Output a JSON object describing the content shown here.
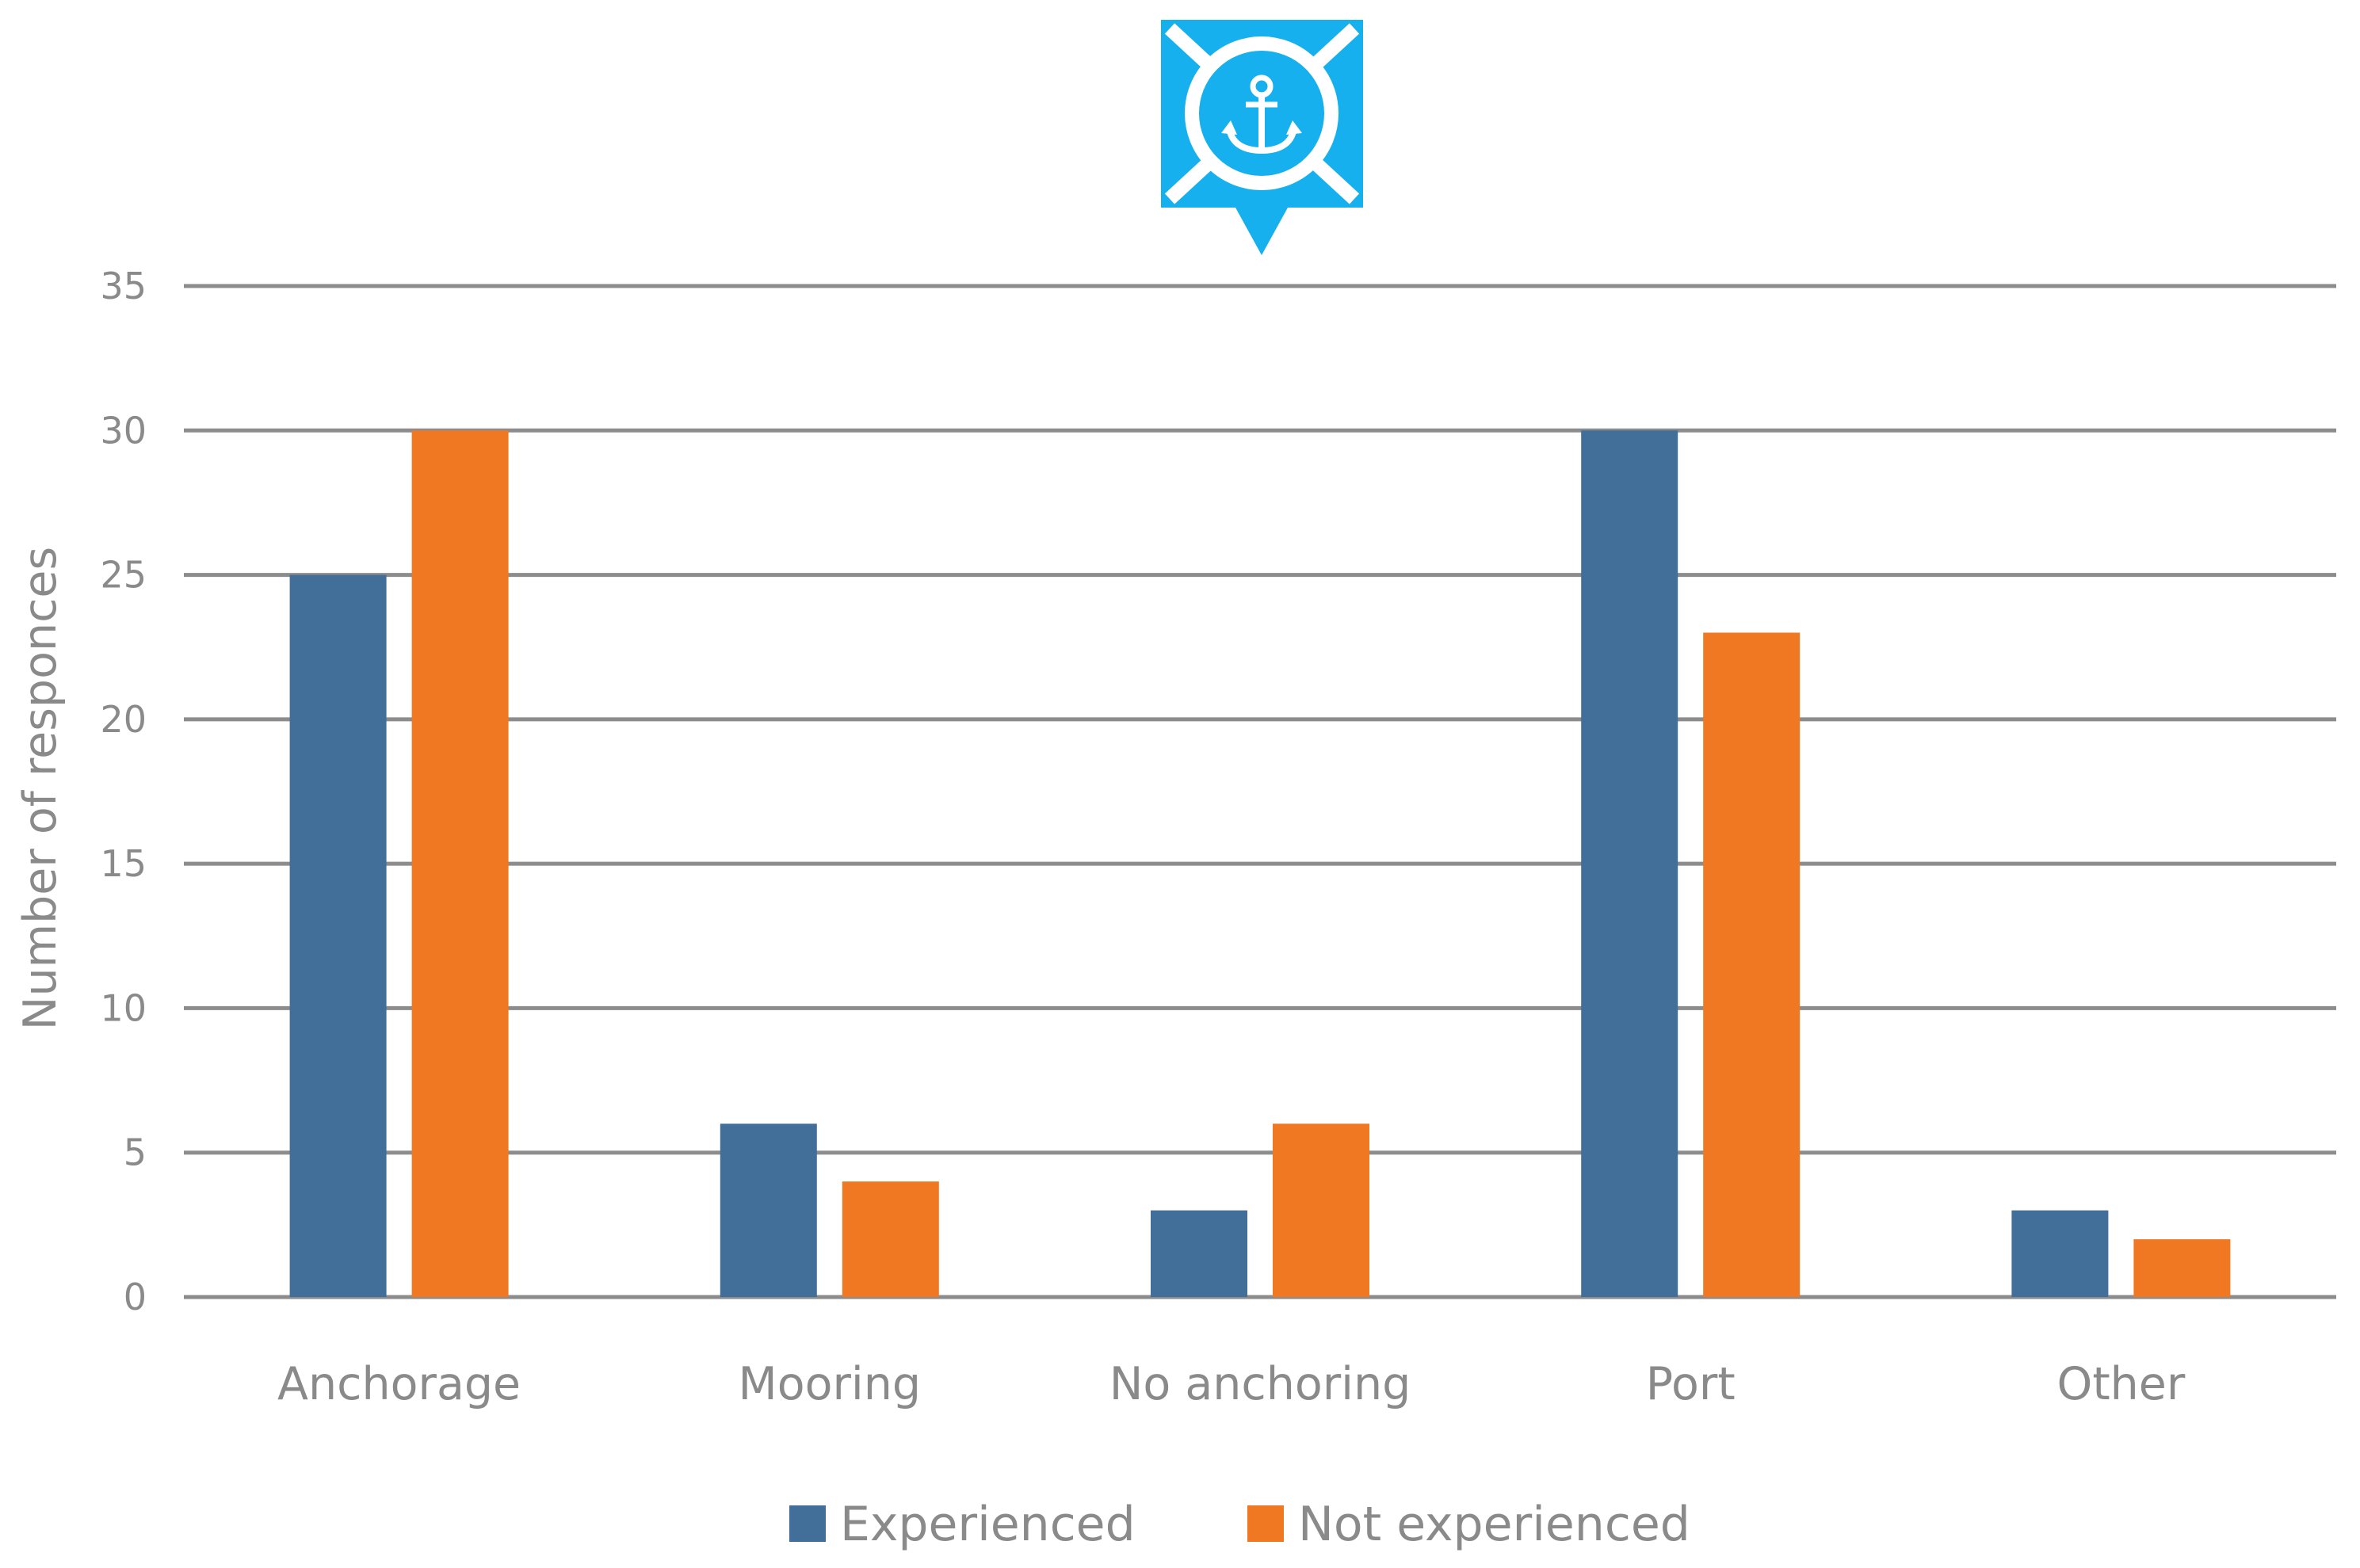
{
  "chart_data": {
    "type": "bar",
    "categories": [
      "Anchorage",
      "Mooring",
      "No anchoring",
      "Port",
      "Other"
    ],
    "series": [
      {
        "name": "Experienced",
        "color": "#426f99",
        "values": [
          25,
          6,
          3,
          30,
          3
        ]
      },
      {
        "name": "Not experienced",
        "color": "#f07822",
        "values": [
          30,
          4,
          6,
          23,
          2
        ]
      }
    ],
    "xlabel": "",
    "ylabel": "Number of responces",
    "ylim": [
      0,
      35
    ],
    "yticks": [
      0,
      5,
      10,
      15,
      20,
      25,
      30,
      35
    ],
    "grid": true,
    "legend_position": "bottom",
    "icon": {
      "name": "anchor-marker-icon",
      "color": "#16b0ee"
    }
  }
}
